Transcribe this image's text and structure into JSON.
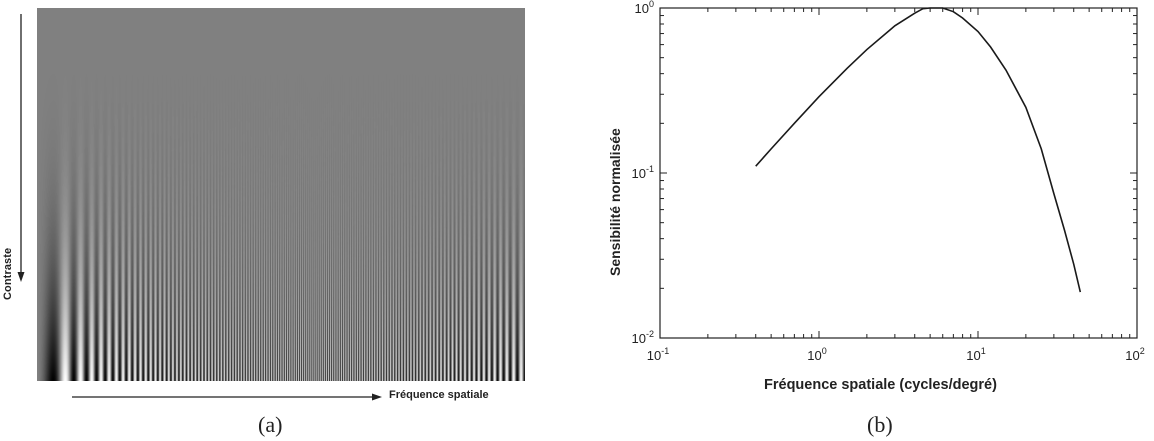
{
  "panel_a": {
    "ylabel": "Contraste",
    "xlabel": "Fréquence spatiale",
    "caption": "(a)"
  },
  "panel_b": {
    "caption": "(b)"
  },
  "chart_data": {
    "type": "line",
    "title": "",
    "xlabel": "Fréquence spatiale (cycles/degré)",
    "ylabel": "Sensibilité normalisée",
    "xscale": "log",
    "yscale": "log",
    "xlim": [
      0.1,
      100
    ],
    "ylim": [
      0.01,
      1
    ],
    "x_tick_labels": [
      "10^-1",
      "10^0",
      "10^1",
      "10^2"
    ],
    "y_tick_labels": [
      "10^-2",
      "10^-1",
      "10^0"
    ],
    "grid": false,
    "series": [
      {
        "color": "#1a1a1a",
        "x": [
          0.4,
          0.5,
          0.7,
          1.0,
          1.5,
          2.0,
          3.0,
          4.0,
          4.5,
          5.0,
          6.0,
          7.0,
          8.0,
          10.0,
          12.0,
          15.0,
          20.0,
          25.0,
          30.0,
          35.0,
          40.0,
          44.0
        ],
        "y": [
          0.11,
          0.14,
          0.2,
          0.29,
          0.43,
          0.56,
          0.78,
          0.93,
          0.99,
          1.0,
          1.0,
          0.95,
          0.87,
          0.72,
          0.58,
          0.42,
          0.25,
          0.14,
          0.075,
          0.045,
          0.028,
          0.019
        ]
      }
    ]
  }
}
